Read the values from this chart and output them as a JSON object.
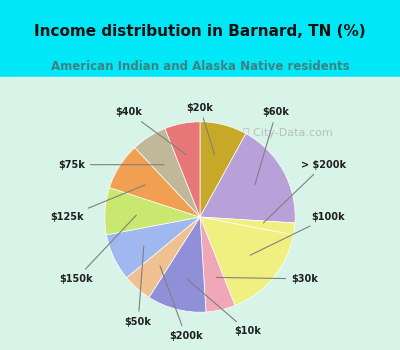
{
  "title": "Income distribution in Barnard, TN (%)",
  "subtitle": "American Indian and Alaska Native residents",
  "watermark": "City-Data.com",
  "labels": [
    "$20k",
    "$60k",
    "> $200k",
    "$100k",
    "$30k",
    "$10k",
    "$200k",
    "$50k",
    "$150k",
    "$125k",
    "$75k",
    "$40k"
  ],
  "values": [
    8,
    18,
    2,
    16,
    5,
    10,
    5,
    8,
    8,
    8,
    6,
    6
  ],
  "colors": [
    "#c8a828",
    "#b8a0d8",
    "#f0f080",
    "#f0f080",
    "#f0a8b8",
    "#9090d8",
    "#f0c090",
    "#a0b8f0",
    "#c8e870",
    "#f0a050",
    "#c0b898",
    "#e87878"
  ],
  "background_top": "#00e8f8",
  "background_chart": "#e8f8f0",
  "title_color": "#101010",
  "subtitle_color": "#408080",
  "figsize": [
    4.0,
    3.5
  ],
  "dpi": 100
}
